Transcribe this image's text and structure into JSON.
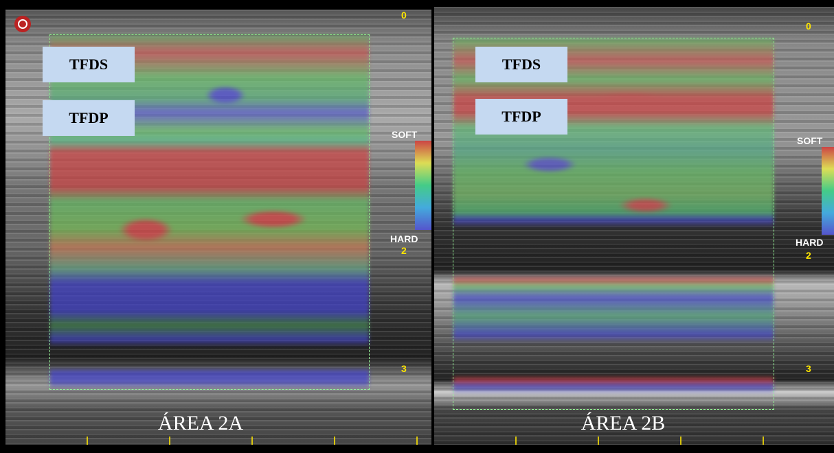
{
  "panels": [
    {
      "caption": "ÁREA 2A",
      "tags": [
        "TFDS",
        "TFDP"
      ],
      "depth_labels": [
        "0",
        "2",
        "3"
      ],
      "scale_labels": [
        "SOFT",
        "HARD"
      ]
    },
    {
      "caption": "ÁREA 2B",
      "tags": [
        "TFDS",
        "TFDP"
      ],
      "depth_labels": [
        "0",
        "2",
        "3"
      ],
      "scale_labels": [
        "SOFT",
        "HARD"
      ]
    }
  ]
}
